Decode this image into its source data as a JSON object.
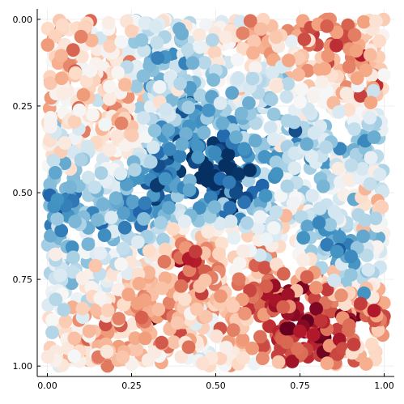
{
  "chart_data": {
    "type": "scatter",
    "title": "",
    "xlabel": "",
    "ylabel": "",
    "xlim": [
      -0.03,
      1.03
    ],
    "ylim": [
      -0.03,
      1.03
    ],
    "y_inverted": true,
    "grid": true,
    "legend": "none",
    "x_ticks": [
      0.0,
      0.25,
      0.5,
      0.75,
      1.0
    ],
    "x_tick_labels": [
      "0.00",
      "0.25",
      "0.50",
      "0.75",
      "1.00"
    ],
    "y_ticks": [
      0.0,
      0.25,
      0.5,
      0.75,
      1.0
    ],
    "y_tick_labels": [
      "0.00",
      "0.25",
      "0.50",
      "0.75",
      "1.00"
    ],
    "colormap": {
      "name": "RdBu",
      "stops": [
        "#053061",
        "#2166ac",
        "#4393c3",
        "#92c5de",
        "#d1e5f0",
        "#f7f7f7",
        "#fddbc7",
        "#f4a582",
        "#d6604d",
        "#b2182b",
        "#67001f"
      ]
    },
    "marker_color_note": "point color encodes a continuous value; warm (red) dominates the upper-left/center, cool (blue) the lower-right",
    "n_points_approx": 2000,
    "points_sample": [
      {
        "x": 0.03,
        "y": 0.52,
        "v": -0.6
      },
      {
        "x": 0.29,
        "y": 0.53,
        "v": -0.7
      },
      {
        "x": 0.56,
        "y": 0.5,
        "v": -0.9
      },
      {
        "x": 0.54,
        "y": 0.47,
        "v": -0.7
      },
      {
        "x": 0.35,
        "y": 0.46,
        "v": -0.6
      },
      {
        "x": 0.4,
        "y": 0.36,
        "v": -0.5
      },
      {
        "x": 0.52,
        "y": 0.3,
        "v": -0.5
      },
      {
        "x": 0.77,
        "y": 0.36,
        "v": -0.5
      },
      {
        "x": 0.76,
        "y": 0.63,
        "v": -0.6
      },
      {
        "x": 0.83,
        "y": 0.65,
        "v": -0.7
      },
      {
        "x": 0.86,
        "y": 0.67,
        "v": -0.6
      },
      {
        "x": 0.97,
        "y": 0.34,
        "v": -0.5
      },
      {
        "x": 0.94,
        "y": 0.79,
        "v": -0.6
      },
      {
        "x": 0.28,
        "y": 0.06,
        "v": -0.4
      },
      {
        "x": 0.49,
        "y": 0.06,
        "v": -0.3
      },
      {
        "x": 0.56,
        "y": 0.34,
        "v": -0.5
      },
      {
        "x": 0.42,
        "y": 0.69,
        "v": 0.8
      },
      {
        "x": 0.44,
        "y": 0.67,
        "v": 0.7
      },
      {
        "x": 0.75,
        "y": 0.9,
        "v": 0.8
      },
      {
        "x": 0.79,
        "y": 0.91,
        "v": 0.8
      },
      {
        "x": 0.97,
        "y": 0.84,
        "v": 0.8
      },
      {
        "x": 0.93,
        "y": 0.82,
        "v": 0.7
      },
      {
        "x": 0.83,
        "y": 0.02,
        "v": 0.6
      },
      {
        "x": 0.58,
        "y": 0.04,
        "v": 0.5
      },
      {
        "x": 0.22,
        "y": 0.3,
        "v": 0.5
      },
      {
        "x": 0.1,
        "y": 0.05,
        "v": 0.5
      },
      {
        "x": 0.7,
        "y": 0.83,
        "v": 0.6
      },
      {
        "x": 0.28,
        "y": 0.86,
        "v": 0.6
      },
      {
        "x": 0.65,
        "y": 0.77,
        "v": 0.6
      },
      {
        "x": 0.92,
        "y": 0.17,
        "v": 0.4
      },
      {
        "x": 0.96,
        "y": 0.24,
        "v": 0.4
      },
      {
        "x": 0.08,
        "y": 0.92,
        "v": 0.3
      }
    ]
  }
}
